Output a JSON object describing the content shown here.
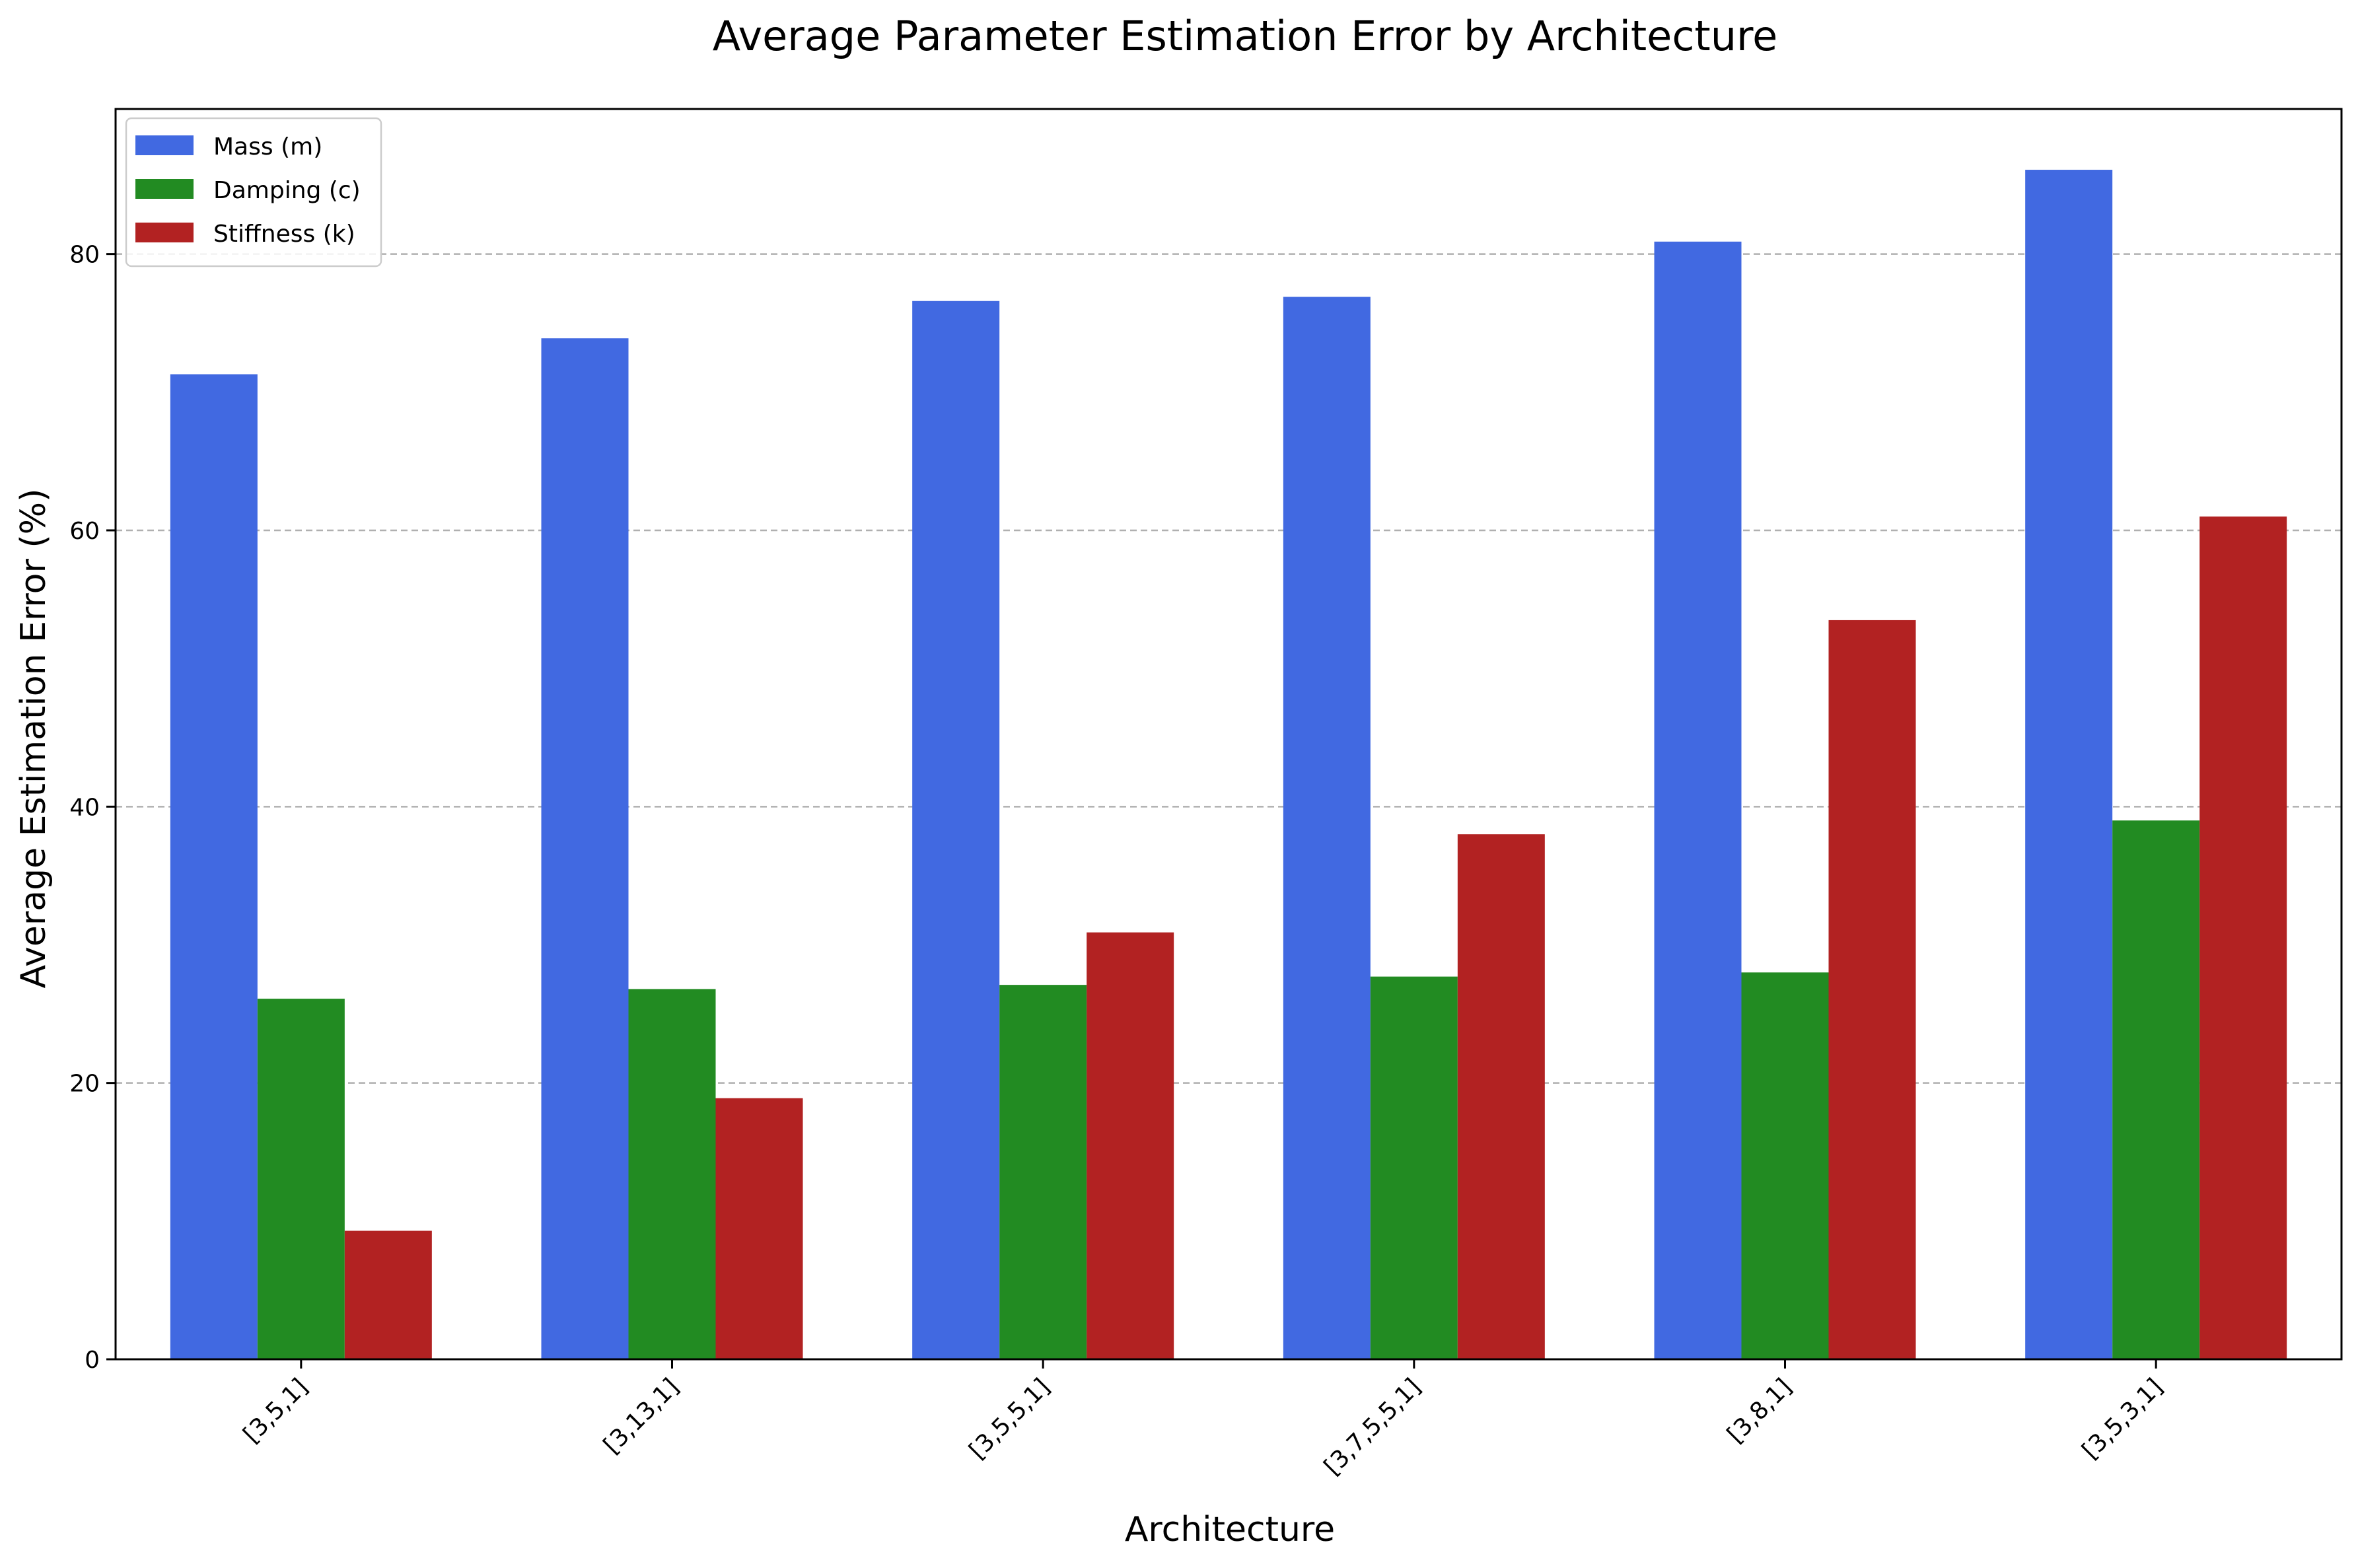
{
  "chart_data": {
    "type": "bar",
    "title": "Average Parameter Estimation Error by Architecture",
    "xlabel": "Architecture",
    "ylabel": "Average Estimation Error (%)",
    "categories": [
      "[3,5,1]",
      "[3,13,1]",
      "[3,5,5,1]",
      "[3,7,5,5,1]",
      "[3,8,1]",
      "[3,5,3,1]"
    ],
    "series": [
      {
        "name": "Mass (m)",
        "color": "#4169e1",
        "values": [
          71.3,
          73.9,
          76.6,
          76.9,
          80.9,
          86.1
        ]
      },
      {
        "name": "Damping (c)",
        "color": "#228b22",
        "values": [
          26.1,
          26.8,
          27.1,
          27.7,
          28.0,
          39.0
        ]
      },
      {
        "name": "Stiffness (k)",
        "color": "#b22222",
        "values": [
          9.3,
          18.9,
          30.9,
          38.0,
          53.5,
          61.0
        ]
      }
    ],
    "ylim": [
      0,
      90.5
    ],
    "yticks": [
      0,
      20,
      40,
      60,
      80
    ],
    "grid": "y-dashed",
    "legend_position": "top-left",
    "xtick_rotation": -45
  }
}
